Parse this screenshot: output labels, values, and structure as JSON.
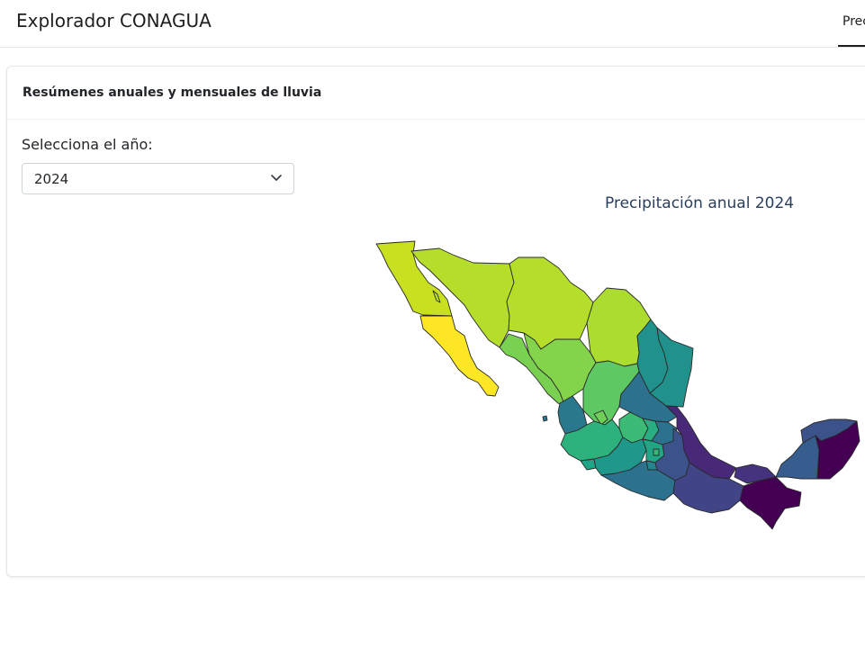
{
  "app": {
    "title": "Explorador CONAGUA"
  },
  "nav": {
    "active_tab": "Precipitación"
  },
  "card": {
    "title": "Resúmenes anuales y mensuales de lluvia"
  },
  "controls": {
    "year_label": "Selecciona el año:",
    "year_value": "2024",
    "chevron_icon": "chevron-down-icon"
  },
  "map": {
    "title": "Precipitación anual 2024",
    "colorscale": "viridis",
    "colors": {
      "low": "#fde725",
      "high": "#440154"
    },
    "regions": [
      {
        "name": "Baja California",
        "fill": "#c8e020"
      },
      {
        "name": "Baja California Sur",
        "fill": "#fde725"
      },
      {
        "name": "Sonora",
        "fill": "#b5de2b"
      },
      {
        "name": "Chihuahua",
        "fill": "#b5de2b"
      },
      {
        "name": "Coahuila",
        "fill": "#addc30"
      },
      {
        "name": "Nuevo León",
        "fill": "#21918c"
      },
      {
        "name": "Tamaulipas",
        "fill": "#21918c"
      },
      {
        "name": "Sinaloa",
        "fill": "#7ad151"
      },
      {
        "name": "Durango",
        "fill": "#84d44b"
      },
      {
        "name": "Zacatecas",
        "fill": "#5ec962"
      },
      {
        "name": "San Luis Potosí",
        "fill": "#2c728e"
      },
      {
        "name": "Nayarit",
        "fill": "#2a788e"
      },
      {
        "name": "Aguascalientes",
        "fill": "#6ece58"
      },
      {
        "name": "Jalisco",
        "fill": "#2db27d"
      },
      {
        "name": "Guanajuato",
        "fill": "#3bbb75"
      },
      {
        "name": "Querétaro",
        "fill": "#28ae80"
      },
      {
        "name": "Hidalgo",
        "fill": "#2c728e"
      },
      {
        "name": "Colima",
        "fill": "#20a486"
      },
      {
        "name": "Michoacán",
        "fill": "#1f988b"
      },
      {
        "name": "Estado de México",
        "fill": "#21a685"
      },
      {
        "name": "Ciudad de México",
        "fill": "#35b779"
      },
      {
        "name": "Morelos",
        "fill": "#25858e"
      },
      {
        "name": "Tlaxcala",
        "fill": "#2a788e"
      },
      {
        "name": "Puebla",
        "fill": "#3b528b"
      },
      {
        "name": "Veracruz",
        "fill": "#482878"
      },
      {
        "name": "Guerrero",
        "fill": "#2c728e"
      },
      {
        "name": "Oaxaca",
        "fill": "#414487"
      },
      {
        "name": "Tabasco",
        "fill": "#46337f"
      },
      {
        "name": "Chiapas",
        "fill": "#440154"
      },
      {
        "name": "Campeche",
        "fill": "#365d8d"
      },
      {
        "name": "Yucatán",
        "fill": "#3b528b"
      },
      {
        "name": "Quintana Roo",
        "fill": "#440154"
      }
    ]
  }
}
